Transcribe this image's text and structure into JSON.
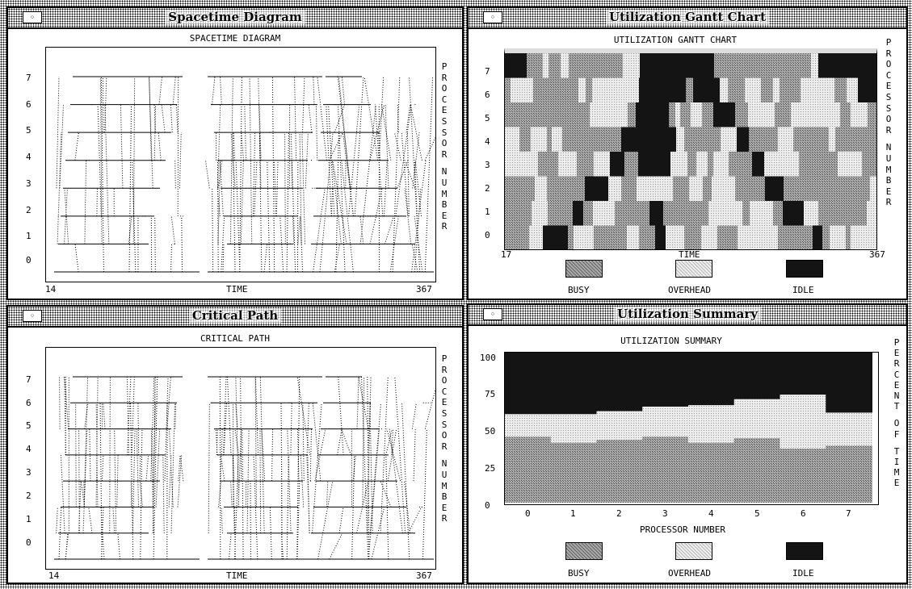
{
  "windows": {
    "spacetime": {
      "title": "Spacetime Diagram",
      "plot_title": "SPACETIME DIAGRAM",
      "x_min": "14",
      "x_max": "367",
      "x_label": "TIME",
      "y_label": "PROCESSOR NUMBER",
      "y_ticks": [
        "7",
        "6",
        "5",
        "4",
        "3",
        "2",
        "1",
        "0"
      ]
    },
    "gantt": {
      "title": "Utilization Gantt Chart",
      "plot_title": "UTILIZATION GANTT CHART",
      "x_min": "17",
      "x_max": "367",
      "x_label": "TIME",
      "y_label": "PROCESSOR NUMBER",
      "y_ticks": [
        "7",
        "6",
        "5",
        "4",
        "3",
        "2",
        "1",
        "0"
      ],
      "legend": [
        "BUSY",
        "OVERHEAD",
        "IDLE"
      ]
    },
    "critical": {
      "title": "Critical Path",
      "plot_title": "CRITICAL PATH",
      "x_min": "14",
      "x_max": "367",
      "x_label": "TIME",
      "y_label": "PROCESSOR NUMBER",
      "y_ticks": [
        "7",
        "6",
        "5",
        "4",
        "3",
        "2",
        "1",
        "0"
      ]
    },
    "summary": {
      "title": "Utilization Summary",
      "plot_title": "UTILIZATION SUMMARY",
      "y_ticks": [
        "100",
        "75",
        "50",
        "25",
        "0"
      ],
      "x_ticks": [
        "0",
        "1",
        "2",
        "3",
        "4",
        "5",
        "6",
        "7"
      ],
      "x_label": "PROCESSOR NUMBER",
      "y_label": "PERCENT OF TIME",
      "legend": [
        "BUSY",
        "OVERHEAD",
        "IDLE"
      ]
    }
  },
  "close_glyph": "◦",
  "colors": {
    "busy": "#8a8a8a",
    "overhead": "#d4d4d4",
    "idle": "#141414"
  },
  "chart_data": [
    {
      "type": "area",
      "title": "UTILIZATION SUMMARY",
      "xlabel": "PROCESSOR NUMBER",
      "ylabel": "PERCENT OF TIME",
      "categories": [
        "0",
        "1",
        "2",
        "3",
        "4",
        "5",
        "6",
        "7"
      ],
      "ylim": [
        0,
        100
      ],
      "series": [
        {
          "name": "BUSY",
          "values": [
            44,
            40,
            42,
            44,
            40,
            43,
            36,
            38
          ]
        },
        {
          "name": "OVERHEAD",
          "values": [
            15,
            19,
            19,
            20,
            25,
            26,
            36,
            22
          ]
        },
        {
          "name": "IDLE",
          "values": [
            41,
            41,
            39,
            36,
            35,
            31,
            28,
            40
          ]
        }
      ]
    },
    {
      "type": "heatmap",
      "title": "UTILIZATION GANTT CHART",
      "xlabel": "TIME",
      "ylabel": "PROCESSOR NUMBER",
      "xlim": [
        17,
        367
      ],
      "categories": [
        "0",
        "1",
        "2",
        "3",
        "4",
        "5",
        "6",
        "7"
      ],
      "states": [
        "BUSY",
        "OVERHEAD",
        "IDLE"
      ]
    }
  ]
}
